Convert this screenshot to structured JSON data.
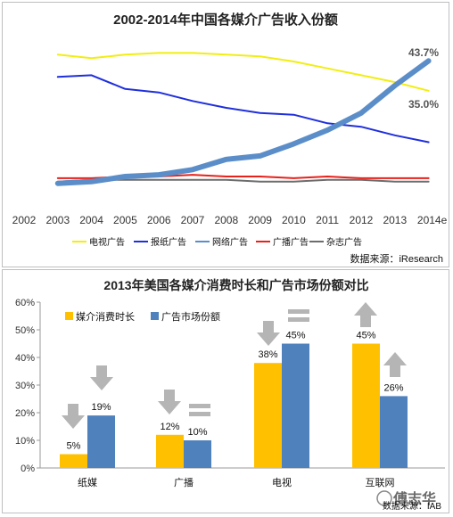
{
  "chart_data": [
    {
      "type": "line",
      "title": "2002-2014年中国各媒介广告收入份额",
      "x": [
        "2002",
        "2003",
        "2004",
        "2005",
        "2006",
        "2007",
        "2008",
        "2009",
        "2010",
        "2011",
        "2012",
        "2013",
        "2014e"
      ],
      "series": [
        {
          "name": "电视广告",
          "color": "#f2ee12",
          "values": [
            null,
            45.5,
            44.5,
            45.5,
            46,
            46,
            45.5,
            45,
            43.5,
            41.5,
            39.5,
            37.5,
            35.0
          ]
        },
        {
          "name": "报纸广告",
          "color": "#1f2fdc",
          "values": [
            null,
            39,
            39.5,
            35.5,
            34.5,
            32,
            30,
            28.5,
            28,
            25.5,
            24.5,
            22,
            20
          ]
        },
        {
          "name": "网络广告",
          "color": "#5b8ec9",
          "values": [
            null,
            8,
            8.5,
            10,
            10.5,
            12,
            15,
            16,
            19.5,
            23.5,
            28.5,
            36.5,
            43.7
          ]
        },
        {
          "name": "广播广告",
          "color": "#e8221b",
          "values": [
            null,
            9.5,
            9.5,
            10,
            10,
            10.5,
            10,
            10,
            9.5,
            10,
            9.5,
            9.5,
            9.5
          ]
        },
        {
          "name": "杂志广告",
          "color": "#6d6d6d",
          "values": [
            null,
            8.5,
            9,
            9,
            9,
            9,
            9,
            8.5,
            8.5,
            9,
            9,
            8.5,
            8.5
          ]
        }
      ],
      "annotations": [
        "43.7%",
        "35.0%"
      ],
      "source": "数据来源：iResearch"
    },
    {
      "type": "bar",
      "title": "2013年美国各媒介消费时长和广告市场份额对比",
      "categories": [
        "纸媒",
        "广播",
        "电视",
        "互联网"
      ],
      "series": [
        {
          "name": "媒介消费时长",
          "color": "#ffc000",
          "values": [
            5,
            12,
            38,
            45
          ]
        },
        {
          "name": "广告市场份额",
          "color": "#4f81bd",
          "values": [
            19,
            10,
            45,
            26
          ]
        }
      ],
      "data_labels": [
        [
          "5%",
          "19%"
        ],
        [
          "12%",
          "10%"
        ],
        [
          "38%",
          "45%"
        ],
        [
          "45%",
          "26%"
        ]
      ],
      "ylim": [
        0,
        60
      ],
      "yticks": [
        "0%",
        "10%",
        "20%",
        "30%",
        "40%",
        "50%",
        "60%"
      ],
      "source": "数据来源：IAB"
    }
  ],
  "watermark": "傅志华"
}
